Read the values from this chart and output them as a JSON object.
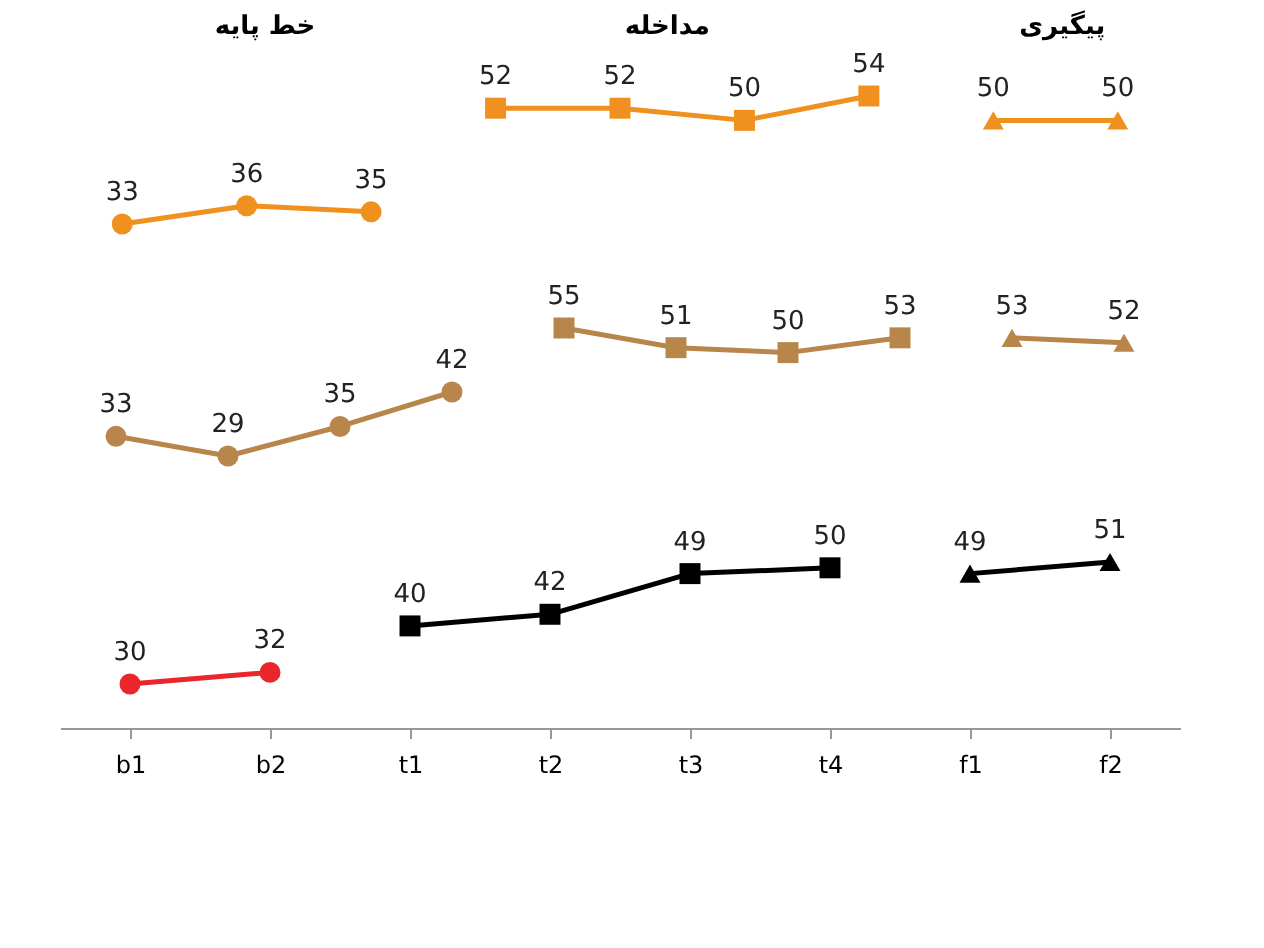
{
  "chart_data": [
    {
      "type": "line",
      "categories": [
        null,
        null,
        null,
        null,
        null,
        null,
        null,
        null,
        null
      ],
      "data_labels": true,
      "tick_labels": false,
      "annotations": [
        "خط پایه",
        "مداخله",
        "پیگیری"
      ],
      "series": [
        {
          "color": "#f0901e",
          "marker": "circle",
          "values": [
            33,
            36,
            35,
            null,
            null,
            null,
            null,
            null,
            null
          ]
        },
        {
          "color": "#f0901e",
          "marker": "square",
          "values": [
            null,
            null,
            null,
            52,
            52,
            50,
            54,
            null,
            null
          ]
        },
        {
          "color": "#f0901e",
          "marker": "triangle",
          "values": [
            null,
            null,
            null,
            null,
            null,
            null,
            null,
            50,
            50
          ]
        }
      ]
    },
    {
      "type": "line",
      "categories": [
        null,
        null,
        null,
        null,
        null,
        null,
        null,
        null,
        null,
        null
      ],
      "data_labels": true,
      "tick_labels": false,
      "series": [
        {
          "color": "#b8864b",
          "marker": "circle",
          "values": [
            33,
            29,
            35,
            42,
            null,
            null,
            null,
            null,
            null,
            null
          ]
        },
        {
          "color": "#b8864b",
          "marker": "square",
          "values": [
            null,
            null,
            null,
            null,
            55,
            51,
            50,
            53,
            null,
            null
          ]
        },
        {
          "color": "#b8864b",
          "marker": "triangle",
          "values": [
            null,
            null,
            null,
            null,
            null,
            null,
            null,
            null,
            53,
            52
          ]
        }
      ]
    },
    {
      "type": "line",
      "categories": [
        "b1",
        "b2",
        "t1",
        "t2",
        "t3",
        "t4",
        "f1",
        "f2"
      ],
      "data_labels": true,
      "tick_labels": "x",
      "series": [
        {
          "color": "#e8262b",
          "marker": "circle",
          "values": [
            30,
            32,
            null,
            null,
            null,
            null,
            null,
            null
          ]
        },
        {
          "color": "#000000",
          "marker": "square",
          "values": [
            null,
            null,
            40,
            42,
            49,
            50,
            null,
            null
          ]
        },
        {
          "color": "#000000",
          "marker": "triangle",
          "values": [
            null,
            null,
            null,
            null,
            null,
            null,
            49,
            51
          ]
        }
      ]
    }
  ]
}
